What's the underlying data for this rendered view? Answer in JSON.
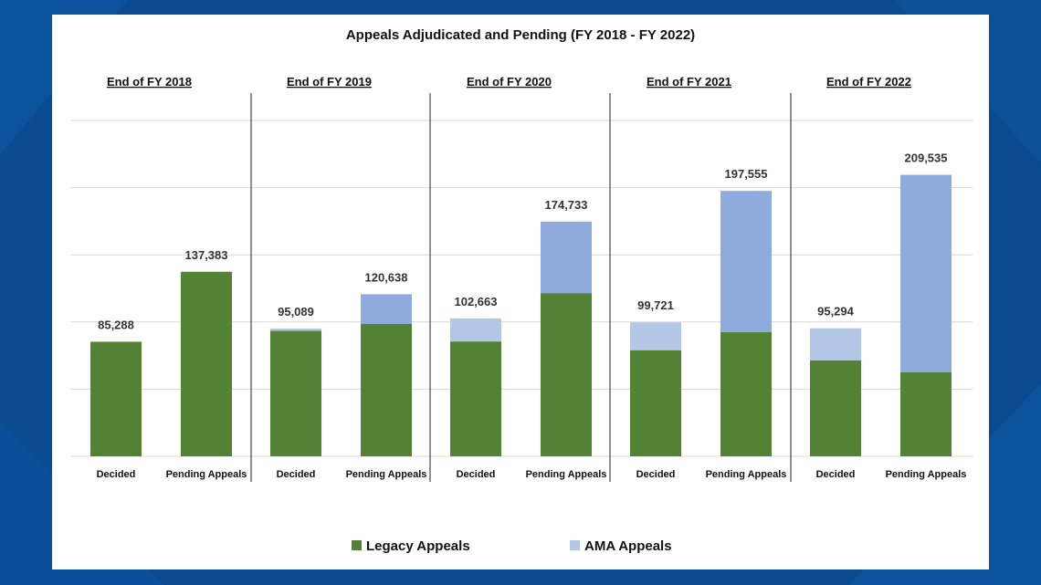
{
  "colors": {
    "legacy": "#548235",
    "ama_decided": "#b4c7e7",
    "ama_pending": "#8faadc",
    "background": "#0a4a8f",
    "card": "#ffffff"
  },
  "chart_data": {
    "type": "bar",
    "stacked": true,
    "title": "Appeals Adjudicated and Pending (FY 2018 - FY 2022)",
    "xlabel": "",
    "ylabel": "",
    "grid": true,
    "legend_position": "bottom",
    "ylim": [
      0,
      250000
    ],
    "groups": [
      {
        "label": "End of FY 2018",
        "bars": [
          {
            "category": "Decided",
            "legacy": 85288,
            "ama": 0,
            "total_label": "85,288"
          },
          {
            "category": "Pending Appeals",
            "legacy": 137383,
            "ama": 0,
            "total_label": "137,383"
          }
        ]
      },
      {
        "label": "End of FY 2019",
        "bars": [
          {
            "category": "Decided",
            "legacy": 93500,
            "ama": 1589,
            "total_label": "95,089"
          },
          {
            "category": "Pending Appeals",
            "legacy": 98500,
            "ama": 22138,
            "total_label": "120,638"
          }
        ]
      },
      {
        "label": "End of FY 2020",
        "bars": [
          {
            "category": "Decided",
            "legacy": 85500,
            "ama": 17163,
            "total_label": "102,663"
          },
          {
            "category": "Pending Appeals",
            "legacy": 121500,
            "ama": 53233,
            "total_label": "174,733"
          }
        ]
      },
      {
        "label": "End of FY 2021",
        "bars": [
          {
            "category": "Decided",
            "legacy": 79000,
            "ama": 20721,
            "total_label": "99,721"
          },
          {
            "category": "Pending Appeals",
            "legacy": 92500,
            "ama": 105055,
            "total_label": "197,555"
          }
        ]
      },
      {
        "label": "End of FY 2022",
        "bars": [
          {
            "category": "Decided",
            "legacy": 71500,
            "ama": 23794,
            "total_label": "95,294"
          },
          {
            "category": "Pending Appeals",
            "legacy": 62500,
            "ama": 147035,
            "total_label": "209,535"
          }
        ]
      }
    ],
    "series": [
      {
        "name": "Legacy Appeals",
        "key": "legacy"
      },
      {
        "name": "AMA Appeals",
        "key": "ama"
      }
    ]
  }
}
